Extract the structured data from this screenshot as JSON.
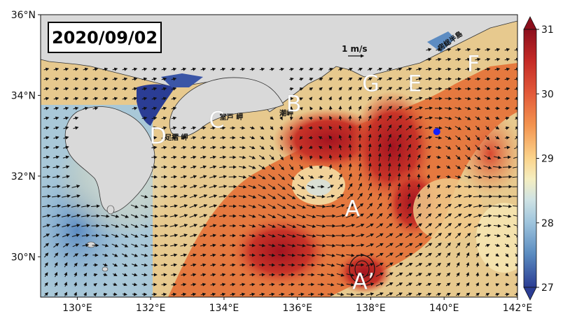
{
  "figure": {
    "date_label": "2020/09/02",
    "colors": {
      "land": "#d9d9d9",
      "cold_extreme": "#2b3d94",
      "warm_extreme": "#8c0f1d",
      "marker": "#1020ff",
      "label_text": "#ffffff"
    }
  },
  "axes": {
    "x_ticks": [
      "130°E",
      "132°E",
      "134°E",
      "136°E",
      "138°E",
      "140°E",
      "142°E"
    ],
    "y_ticks": [
      "36°N",
      "34°N",
      "32°N",
      "30°N"
    ],
    "lon_range": [
      129,
      142
    ],
    "lat_range": [
      29,
      36
    ]
  },
  "colorbar": {
    "ticks": [
      "31",
      "30",
      "29",
      "28",
      "27"
    ],
    "range": [
      27,
      31
    ],
    "extend": "both",
    "colormap": "RdYlBu_r"
  },
  "scale_arrow": {
    "label": "1 m/s"
  },
  "point_labels": [
    {
      "id": "A",
      "text": "A",
      "lon": 137.5,
      "lat": 31.0
    },
    {
      "id": "A-prime",
      "text": "A’",
      "lon": 137.8,
      "lat": 29.2
    },
    {
      "id": "B",
      "text": "B",
      "lon": 135.9,
      "lat": 33.6
    },
    {
      "id": "C",
      "text": "C",
      "lon": 133.8,
      "lat": 33.2
    },
    {
      "id": "D",
      "text": "D",
      "lon": 132.2,
      "lat": 32.8
    },
    {
      "id": "E",
      "text": "E",
      "lon": 139.2,
      "lat": 34.1
    },
    {
      "id": "F",
      "text": "F",
      "lon": 140.8,
      "lat": 34.6
    },
    {
      "id": "G",
      "text": "G",
      "lon": 138.0,
      "lat": 34.1
    }
  ],
  "place_labels": [
    {
      "id": "cape-muroto",
      "text": "室戸 岬",
      "lon": 134.2,
      "lat": 33.4
    },
    {
      "id": "cape-ashizuri",
      "text": "足摺 岬",
      "lon": 132.7,
      "lat": 32.9
    },
    {
      "id": "shionomisaki",
      "text": "潮岬",
      "lon": 135.7,
      "lat": 33.5
    },
    {
      "id": "boso-peninsula",
      "text": "房総半島",
      "lon": 140.2,
      "lat": 35.3
    }
  ],
  "marker_point": {
    "lon": 139.8,
    "lat": 33.1
  }
}
